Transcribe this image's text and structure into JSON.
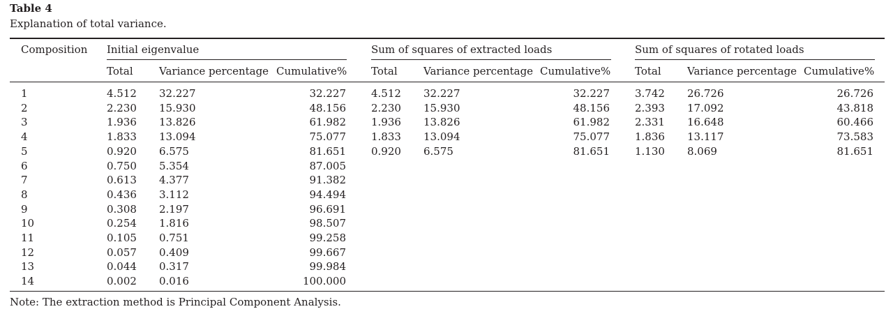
{
  "table": {
    "label": "Table 4",
    "caption": "Explanation of total variance.",
    "stub_header": "Composition",
    "groups": [
      {
        "title": "Initial eigenvalue",
        "columns": [
          "Total",
          "Variance percentage",
          "Cumulative%"
        ]
      },
      {
        "title": "Sum of squares of extracted loads",
        "columns": [
          "Total",
          "Variance percentage",
          "Cumulative%"
        ]
      },
      {
        "title": "Sum of squares of rotated loads",
        "columns": [
          "Total",
          "Variance percentage",
          "Cumulative%"
        ]
      }
    ],
    "rows": [
      {
        "component": "1",
        "initial": [
          "4.512",
          "32.227",
          "32.227"
        ],
        "extracted": [
          "4.512",
          "32.227",
          "32.227"
        ],
        "rotated": [
          "3.742",
          "26.726",
          "26.726"
        ]
      },
      {
        "component": "2",
        "initial": [
          "2.230",
          "15.930",
          "48.156"
        ],
        "extracted": [
          "2.230",
          "15.930",
          "48.156"
        ],
        "rotated": [
          "2.393",
          "17.092",
          "43.818"
        ]
      },
      {
        "component": "3",
        "initial": [
          "1.936",
          "13.826",
          "61.982"
        ],
        "extracted": [
          "1.936",
          "13.826",
          "61.982"
        ],
        "rotated": [
          "2.331",
          "16.648",
          "60.466"
        ]
      },
      {
        "component": "4",
        "initial": [
          "1.833",
          "13.094",
          "75.077"
        ],
        "extracted": [
          "1.833",
          "13.094",
          "75.077"
        ],
        "rotated": [
          "1.836",
          "13.117",
          "73.583"
        ]
      },
      {
        "component": "5",
        "initial": [
          "0.920",
          "6.575",
          "81.651"
        ],
        "extracted": [
          "0.920",
          "6.575",
          "81.651"
        ],
        "rotated": [
          "1.130",
          "8.069",
          "81.651"
        ]
      },
      {
        "component": "6",
        "initial": [
          "0.750",
          "5.354",
          "87.005"
        ],
        "extracted": [],
        "rotated": []
      },
      {
        "component": "7",
        "initial": [
          "0.613",
          "4.377",
          "91.382"
        ],
        "extracted": [],
        "rotated": []
      },
      {
        "component": "8",
        "initial": [
          "0.436",
          "3.112",
          "94.494"
        ],
        "extracted": [],
        "rotated": []
      },
      {
        "component": "9",
        "initial": [
          "0.308",
          "2.197",
          "96.691"
        ],
        "extracted": [],
        "rotated": []
      },
      {
        "component": "10",
        "initial": [
          "0.254",
          "1.816",
          "98.507"
        ],
        "extracted": [],
        "rotated": []
      },
      {
        "component": "11",
        "initial": [
          "0.105",
          "0.751",
          "99.258"
        ],
        "extracted": [],
        "rotated": []
      },
      {
        "component": "12",
        "initial": [
          "0.057",
          "0.409",
          "99.667"
        ],
        "extracted": [],
        "rotated": []
      },
      {
        "component": "13",
        "initial": [
          "0.044",
          "0.317",
          "99.984"
        ],
        "extracted": [],
        "rotated": []
      },
      {
        "component": "14",
        "initial": [
          "0.002",
          "0.016",
          "100.000"
        ],
        "extracted": [],
        "rotated": []
      }
    ],
    "note": "Note: The extraction method is Principal Component Analysis."
  }
}
